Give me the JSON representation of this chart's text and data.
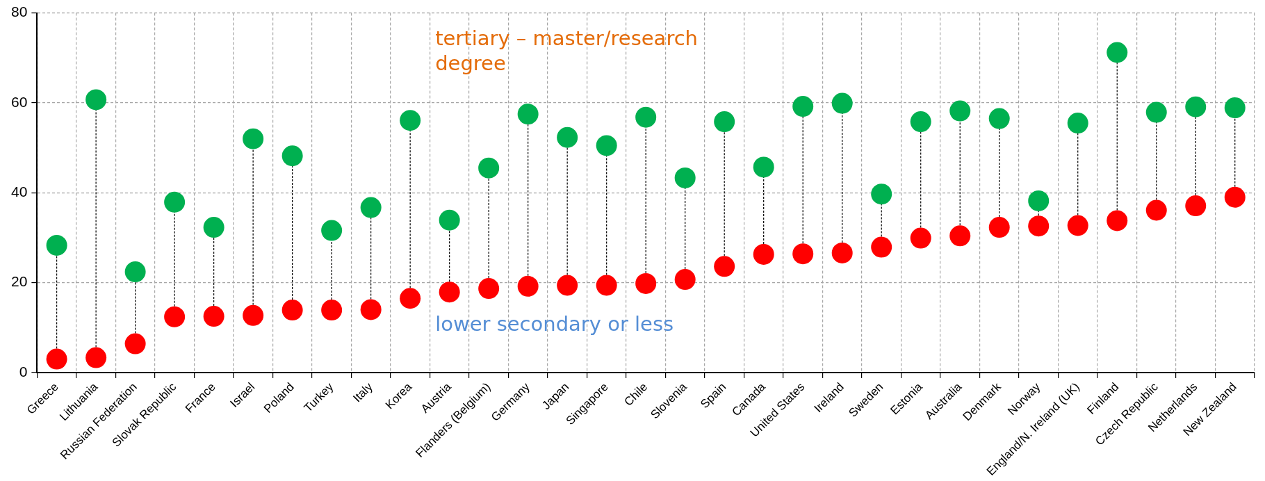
{
  "chart_data": {
    "type": "scatter",
    "categories": [
      "Greece",
      "Lithuania",
      "Russian Federation",
      "Slovak Republic",
      "France",
      "Israel",
      "Poland",
      "Turkey",
      "Italy",
      "Korea",
      "Austria",
      "Flanders (Belgium)",
      "Germany",
      "Japan",
      "Singapore",
      "Chile",
      "Slovenia",
      "Spain",
      "Canada",
      "United States",
      "Ireland",
      "Sweden",
      "Estonia",
      "Australia",
      "Denmark",
      "Norway",
      "England/N. Ireland (UK)",
      "Finland",
      "Czech Republic",
      "Netherlands",
      "New Zealand"
    ],
    "series": [
      {
        "name": "tertiary – master/research degree",
        "color": "#00b050",
        "values": [
          28.3,
          60.7,
          22.4,
          37.9,
          32.3,
          52.0,
          48.2,
          31.6,
          36.7,
          56.1,
          33.9,
          45.5,
          57.5,
          52.3,
          50.5,
          56.8,
          43.3,
          55.8,
          45.7,
          59.2,
          59.9,
          39.7,
          55.8,
          58.2,
          56.5,
          38.2,
          55.5,
          71.2,
          57.9,
          59.1,
          58.9
        ]
      },
      {
        "name": "lower secondary or less",
        "color": "#ff0000",
        "values": [
          3.0,
          3.3,
          6.4,
          12.4,
          12.5,
          12.7,
          13.9,
          13.9,
          14.0,
          16.5,
          17.9,
          18.7,
          19.2,
          19.4,
          19.4,
          19.8,
          20.7,
          23.6,
          26.3,
          26.4,
          26.6,
          27.9,
          29.9,
          30.4,
          32.3,
          32.6,
          32.7,
          33.8,
          36.1,
          37.1,
          39.0
        ]
      }
    ],
    "ylim": [
      0,
      80
    ],
    "yticks": [
      0,
      20,
      40,
      60,
      80
    ],
    "grid": true,
    "marker": "circle",
    "legend": false
  }
}
